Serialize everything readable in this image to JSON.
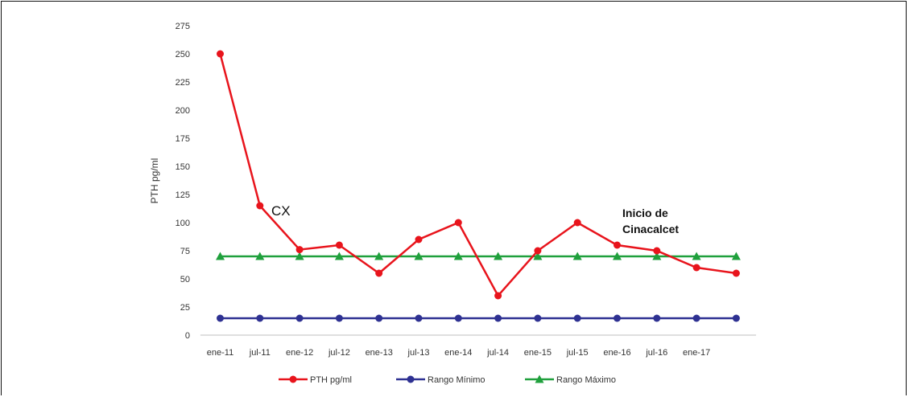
{
  "chart_data": {
    "type": "line",
    "categories": [
      "ene-11",
      "jul-11",
      "ene-12",
      "jul-12",
      "ene-13",
      "jul-13",
      "ene-14",
      "jul-14",
      "ene-15",
      "jul-15",
      "ene-16",
      "jul-16",
      "ene-17",
      ""
    ],
    "ylabel": "PTH pg/ml",
    "ylim": [
      0,
      275
    ],
    "yticks": [
      0,
      25,
      50,
      75,
      100,
      125,
      150,
      175,
      200,
      225,
      250,
      275
    ],
    "series": [
      {
        "name": "PTH pg/ml",
        "color": "#e8141c",
        "marker": "circle",
        "values": [
          250,
          115,
          76,
          80,
          55,
          85,
          100,
          35,
          75,
          100,
          80,
          75,
          60,
          55
        ]
      },
      {
        "name": "Rango Mínimo",
        "color": "#2e3192",
        "marker": "circle",
        "values": [
          15,
          15,
          15,
          15,
          15,
          15,
          15,
          15,
          15,
          15,
          15,
          15,
          15,
          15
        ]
      },
      {
        "name": "Rango Máximo",
        "color": "#1fa03c",
        "marker": "triangle",
        "values": [
          70,
          70,
          70,
          70,
          70,
          70,
          70,
          70,
          70,
          70,
          70,
          70,
          70,
          70
        ]
      }
    ],
    "annotations": [
      {
        "text": "CX",
        "near_index": 1,
        "near_value": 115
      },
      {
        "text": "Inicio de",
        "near_index": 10,
        "near_value": 100
      },
      {
        "text": "Cinacalcet",
        "near_index": 10,
        "near_value": 100
      }
    ],
    "legend_position": "bottom",
    "grid": false
  }
}
